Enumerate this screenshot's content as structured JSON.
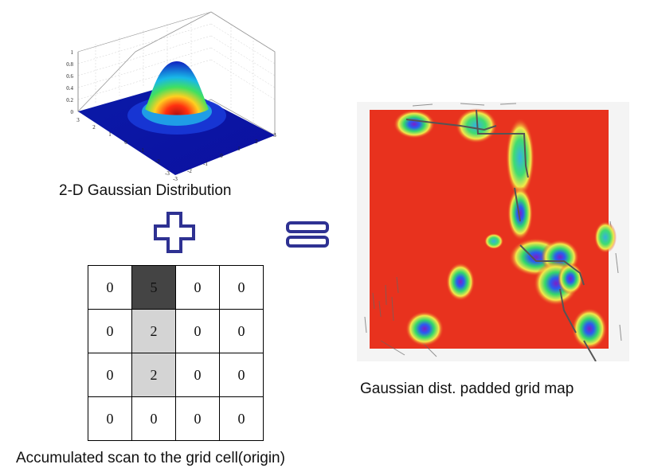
{
  "gaussian_plot": {
    "caption": "2-D Gaussian Distribution",
    "z_ticks": [
      "1",
      "0.8",
      "0.6",
      "0.4",
      "0.2",
      "0"
    ],
    "x_ticks": [
      "3",
      "2",
      "1",
      "0",
      "-1",
      "-2",
      "-3"
    ],
    "y_ticks": [
      "-3",
      "-2",
      "-1",
      "0",
      "1",
      "2",
      "3"
    ]
  },
  "plus_symbol": "+",
  "equals_symbol": "=",
  "grid": {
    "caption": "Accumulated scan to the grid cell(origin)",
    "rows": [
      [
        "0",
        "5",
        "0",
        "0"
      ],
      [
        "0",
        "2",
        "0",
        "0"
      ],
      [
        "0",
        "2",
        "0",
        "0"
      ],
      [
        "0",
        "0",
        "0",
        "0"
      ]
    ],
    "cell_shading": [
      [
        "none",
        "dark",
        "none",
        "none"
      ],
      [
        "none",
        "light",
        "none",
        "none"
      ],
      [
        "none",
        "light",
        "none",
        "none"
      ],
      [
        "none",
        "none",
        "none",
        "none"
      ]
    ]
  },
  "grid_map": {
    "caption": "Gaussian dist. padded grid map",
    "colors": {
      "background": "#e8321e",
      "blob_outer": "#f4e84a",
      "blob_mid": "#35d86a",
      "blob_inner": "#2a5cf0",
      "blob_core": "#7a1fc8"
    }
  }
}
